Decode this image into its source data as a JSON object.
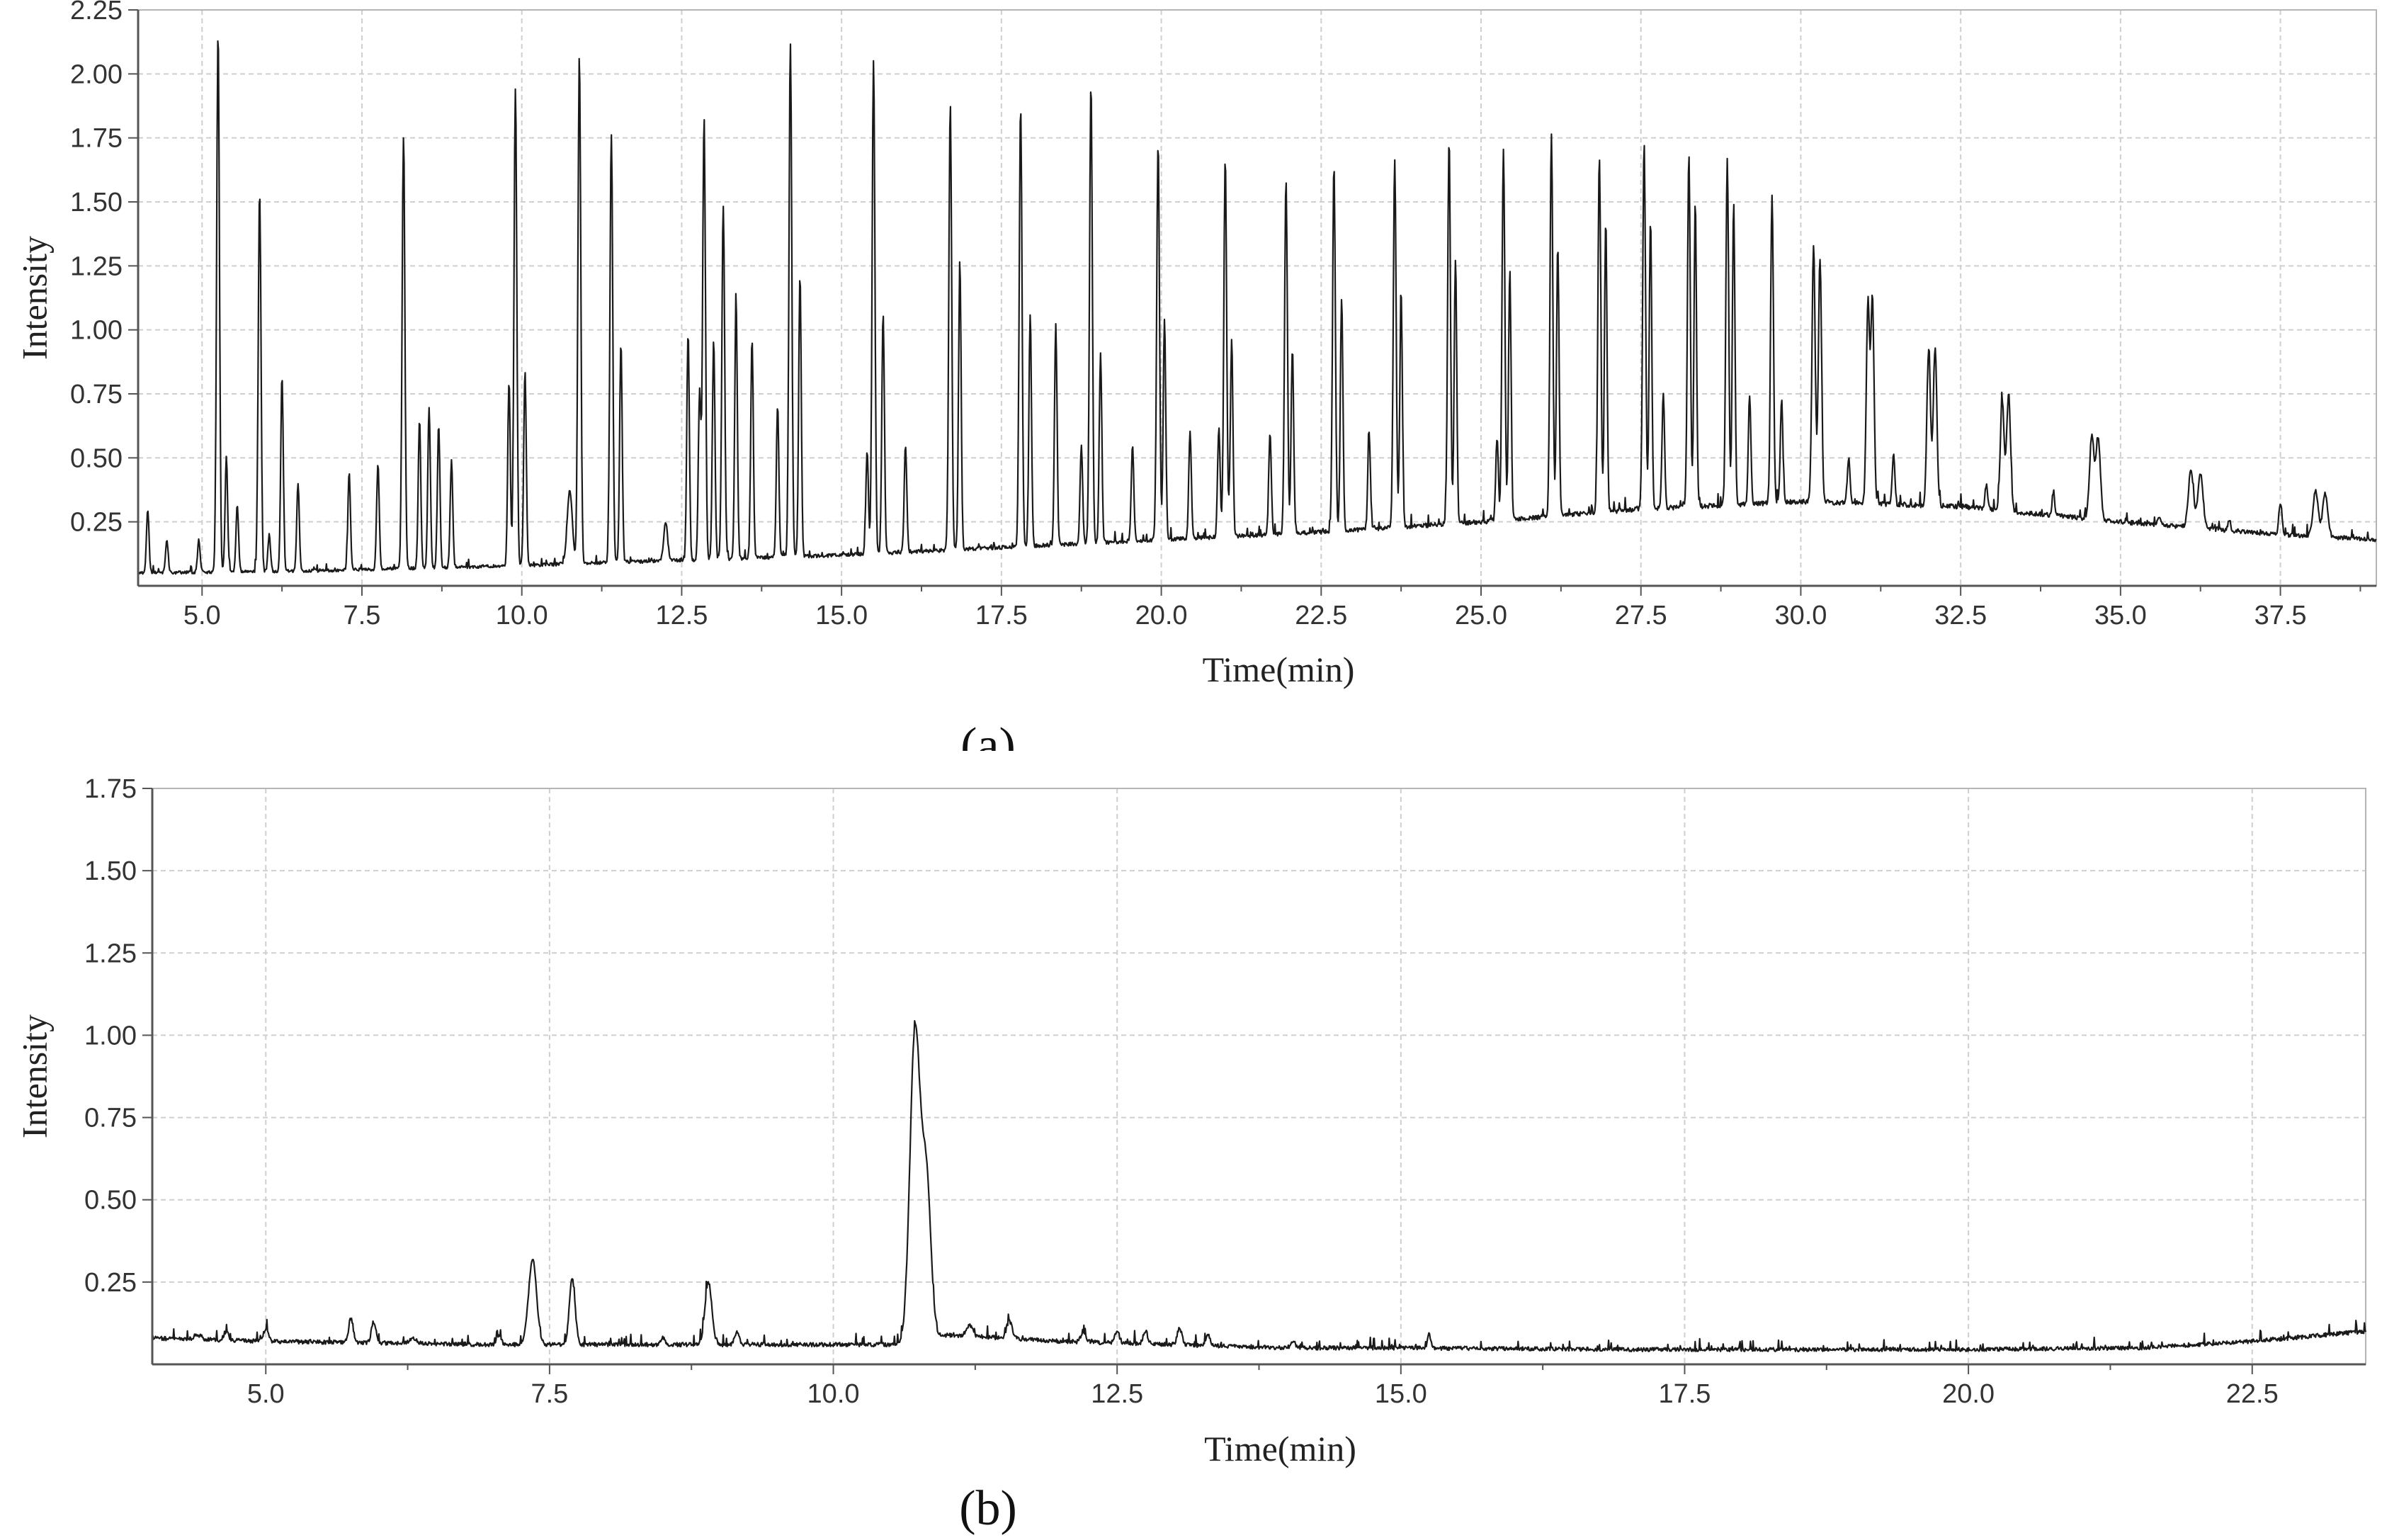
{
  "chart_data": [
    {
      "type": "line",
      "panel_label": "(a)",
      "xlabel": "Time(min)",
      "ylabel": "Intensity",
      "xlim": [
        4.0,
        39.0
      ],
      "ylim": [
        0.0,
        2.25
      ],
      "x_ticks": [
        5.0,
        7.5,
        10.0,
        12.5,
        15.0,
        17.5,
        20.0,
        22.5,
        25.0,
        27.5,
        30.0,
        32.5,
        35.0,
        37.5
      ],
      "x_tick_labels": [
        "5.0",
        "7.5",
        "10.0",
        "12.5",
        "15.0",
        "17.5",
        "20.0",
        "22.5",
        "25.0",
        "27.5",
        "30.0",
        "32.5",
        "35.0",
        "37.5"
      ],
      "y_ticks": [
        0.25,
        0.5,
        0.75,
        1.0,
        1.25,
        1.5,
        1.75,
        2.0,
        2.25
      ],
      "y_tick_labels": [
        "0.25",
        "0.50",
        "0.75",
        "1.00",
        "1.25",
        "1.50",
        "1.75",
        "2.00",
        "2.25"
      ],
      "grid": true,
      "baseline": [
        [
          4.0,
          0.05
        ],
        [
          7.0,
          0.06
        ],
        [
          10.0,
          0.08
        ],
        [
          12.5,
          0.1
        ],
        [
          15.0,
          0.12
        ],
        [
          17.5,
          0.15
        ],
        [
          20.0,
          0.18
        ],
        [
          22.5,
          0.21
        ],
        [
          25.0,
          0.25
        ],
        [
          27.5,
          0.3
        ],
        [
          30.0,
          0.33
        ],
        [
          32.5,
          0.31
        ],
        [
          35.0,
          0.25
        ],
        [
          37.5,
          0.2
        ],
        [
          39.0,
          0.18
        ]
      ],
      "peaks": [
        [
          4.15,
          0.3,
          0.02
        ],
        [
          4.45,
          0.18,
          0.02
        ],
        [
          4.95,
          0.18,
          0.02
        ],
        [
          5.25,
          2.17,
          0.022
        ],
        [
          5.38,
          0.5,
          0.02
        ],
        [
          5.55,
          0.32,
          0.02
        ],
        [
          5.9,
          1.54,
          0.022
        ],
        [
          6.05,
          0.2,
          0.02
        ],
        [
          6.25,
          0.82,
          0.02
        ],
        [
          6.5,
          0.4,
          0.02
        ],
        [
          7.3,
          0.44,
          0.02
        ],
        [
          7.75,
          0.48,
          0.02
        ],
        [
          8.15,
          1.75,
          0.022
        ],
        [
          8.4,
          0.65,
          0.02
        ],
        [
          8.55,
          0.7,
          0.02
        ],
        [
          8.7,
          0.63,
          0.02
        ],
        [
          8.9,
          0.49,
          0.02
        ],
        [
          9.8,
          0.8,
          0.02
        ],
        [
          9.9,
          1.95,
          0.022
        ],
        [
          10.05,
          0.84,
          0.02
        ],
        [
          10.75,
          0.37,
          0.04
        ],
        [
          10.9,
          2.08,
          0.022
        ],
        [
          11.4,
          1.76,
          0.022
        ],
        [
          11.55,
          0.95,
          0.02
        ],
        [
          12.25,
          0.25,
          0.03
        ],
        [
          12.6,
          0.99,
          0.02
        ],
        [
          12.78,
          0.76,
          0.02
        ],
        [
          12.85,
          1.83,
          0.022
        ],
        [
          13.0,
          0.96,
          0.02
        ],
        [
          13.15,
          1.49,
          0.022
        ],
        [
          13.35,
          1.12,
          0.02
        ],
        [
          13.6,
          0.97,
          0.02
        ],
        [
          14.0,
          0.7,
          0.02
        ],
        [
          14.2,
          2.12,
          0.022
        ],
        [
          14.35,
          1.22,
          0.02
        ],
        [
          15.4,
          0.53,
          0.02
        ],
        [
          15.5,
          2.05,
          0.022
        ],
        [
          15.65,
          1.07,
          0.02
        ],
        [
          16.0,
          0.55,
          0.02
        ],
        [
          16.7,
          1.89,
          0.022
        ],
        [
          16.85,
          1.27,
          0.02
        ],
        [
          17.8,
          1.88,
          0.022
        ],
        [
          17.95,
          1.06,
          0.02
        ],
        [
          18.35,
          1.02,
          0.02
        ],
        [
          18.75,
          0.55,
          0.02
        ],
        [
          18.9,
          1.96,
          0.022
        ],
        [
          19.05,
          0.91,
          0.02
        ],
        [
          19.55,
          0.55,
          0.02
        ],
        [
          19.95,
          1.73,
          0.022
        ],
        [
          20.05,
          1.04,
          0.02
        ],
        [
          20.45,
          0.6,
          0.02
        ],
        [
          20.9,
          0.62,
          0.02
        ],
        [
          21.0,
          1.67,
          0.022
        ],
        [
          21.1,
          0.96,
          0.02
        ],
        [
          21.7,
          0.6,
          0.02
        ],
        [
          21.95,
          1.59,
          0.022
        ],
        [
          22.05,
          0.93,
          0.02
        ],
        [
          22.7,
          1.64,
          0.022
        ],
        [
          22.82,
          1.13,
          0.02
        ],
        [
          23.25,
          0.6,
          0.02
        ],
        [
          23.65,
          1.66,
          0.022
        ],
        [
          23.75,
          1.14,
          0.02
        ],
        [
          24.5,
          1.74,
          0.022
        ],
        [
          24.6,
          1.28,
          0.02
        ],
        [
          25.25,
          0.58,
          0.02
        ],
        [
          25.35,
          1.71,
          0.022
        ],
        [
          25.45,
          1.23,
          0.02
        ],
        [
          26.1,
          1.75,
          0.022
        ],
        [
          26.2,
          1.33,
          0.02
        ],
        [
          26.85,
          1.68,
          0.022
        ],
        [
          26.95,
          1.42,
          0.02
        ],
        [
          27.55,
          1.73,
          0.022
        ],
        [
          27.65,
          1.44,
          0.02
        ],
        [
          27.85,
          0.75,
          0.02
        ],
        [
          28.25,
          1.68,
          0.022
        ],
        [
          28.35,
          1.49,
          0.02
        ],
        [
          28.85,
          1.67,
          0.022
        ],
        [
          28.95,
          1.5,
          0.02
        ],
        [
          29.2,
          0.74,
          0.02
        ],
        [
          29.55,
          1.53,
          0.022
        ],
        [
          29.7,
          0.73,
          0.02
        ],
        [
          30.2,
          1.33,
          0.025
        ],
        [
          30.3,
          1.28,
          0.025
        ],
        [
          30.75,
          0.5,
          0.02
        ],
        [
          31.05,
          1.11,
          0.025
        ],
        [
          31.12,
          1.13,
          0.025
        ],
        [
          31.45,
          0.51,
          0.02
        ],
        [
          32.0,
          0.93,
          0.028
        ],
        [
          32.1,
          0.93,
          0.028
        ],
        [
          32.9,
          0.39,
          0.02
        ],
        [
          33.15,
          0.72,
          0.03
        ],
        [
          33.25,
          0.75,
          0.03
        ],
        [
          33.95,
          0.37,
          0.02
        ],
        [
          34.55,
          0.58,
          0.035
        ],
        [
          34.65,
          0.58,
          0.035
        ],
        [
          35.6,
          0.27,
          0.02
        ],
        [
          36.1,
          0.45,
          0.04
        ],
        [
          36.25,
          0.44,
          0.04
        ],
        [
          36.7,
          0.26,
          0.02
        ],
        [
          37.5,
          0.32,
          0.025
        ],
        [
          38.05,
          0.37,
          0.04
        ],
        [
          38.2,
          0.36,
          0.04
        ]
      ]
    },
    {
      "type": "line",
      "panel_label": "(b)",
      "xlabel": "Time(min)",
      "ylabel": "Intensity",
      "xlim": [
        4.0,
        23.5
      ],
      "ylim": [
        0.0,
        1.75
      ],
      "x_ticks": [
        5.0,
        7.5,
        10.0,
        12.5,
        15.0,
        17.5,
        20.0,
        22.5
      ],
      "x_tick_labels": [
        "5.0",
        "7.5",
        "10.0",
        "12.5",
        "15.0",
        "17.5",
        "20.0",
        "22.5"
      ],
      "y_ticks": [
        0.25,
        0.5,
        0.75,
        1.0,
        1.25,
        1.5,
        1.75
      ],
      "y_tick_labels": [
        "0.25",
        "0.50",
        "0.75",
        "1.00",
        "1.25",
        "1.50",
        "1.75"
      ],
      "grid": true,
      "baseline": [
        [
          4.0,
          0.08
        ],
        [
          5.0,
          0.07
        ],
        [
          7.0,
          0.06
        ],
        [
          10.0,
          0.06
        ],
        [
          10.7,
          0.06
        ],
        [
          11.0,
          0.09
        ],
        [
          12.0,
          0.07
        ],
        [
          14.0,
          0.05
        ],
        [
          15.0,
          0.05
        ],
        [
          17.0,
          0.045
        ],
        [
          20.0,
          0.045
        ],
        [
          21.5,
          0.05
        ],
        [
          22.5,
          0.07
        ],
        [
          23.5,
          0.1
        ]
      ],
      "peaks": [
        [
          4.4,
          0.09,
          0.03
        ],
        [
          4.65,
          0.1,
          0.02
        ],
        [
          5.0,
          0.11,
          0.02
        ],
        [
          5.75,
          0.14,
          0.02
        ],
        [
          5.95,
          0.13,
          0.02
        ],
        [
          6.3,
          0.08,
          0.03
        ],
        [
          7.05,
          0.09,
          0.02
        ],
        [
          7.35,
          0.32,
          0.035
        ],
        [
          7.7,
          0.26,
          0.025
        ],
        [
          8.5,
          0.08,
          0.02
        ],
        [
          8.9,
          0.25,
          0.03
        ],
        [
          9.15,
          0.1,
          0.02
        ],
        [
          10.72,
          1.01,
          0.045
        ],
        [
          10.82,
          0.55,
          0.04
        ],
        [
          11.2,
          0.12,
          0.025
        ],
        [
          11.55,
          0.13,
          0.025
        ],
        [
          12.2,
          0.1,
          0.02
        ],
        [
          12.5,
          0.1,
          0.02
        ],
        [
          12.75,
          0.1,
          0.02
        ],
        [
          13.05,
          0.11,
          0.02
        ],
        [
          13.3,
          0.09,
          0.02
        ],
        [
          14.05,
          0.07,
          0.02
        ],
        [
          15.25,
          0.09,
          0.015
        ]
      ]
    }
  ]
}
